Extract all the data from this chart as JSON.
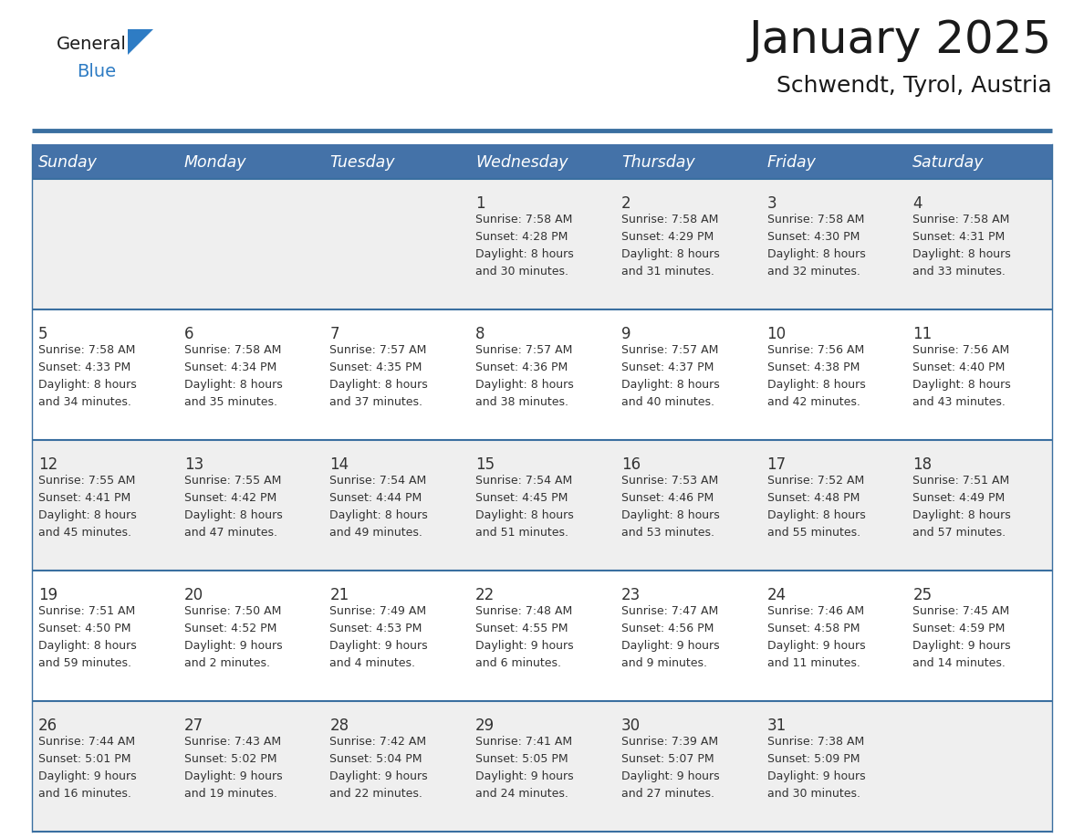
{
  "title": "January 2025",
  "subtitle": "Schwendt, Tyrol, Austria",
  "days_of_week": [
    "Sunday",
    "Monday",
    "Tuesday",
    "Wednesday",
    "Thursday",
    "Friday",
    "Saturday"
  ],
  "header_bg": "#4472a8",
  "header_text": "#ffffff",
  "row_bg_odd": "#efefef",
  "row_bg_even": "#ffffff",
  "divider_color": "#3a6fa0",
  "text_color": "#333333",
  "calendar": [
    [
      null,
      null,
      null,
      {
        "day": 1,
        "sunrise": "7:58 AM",
        "sunset": "4:28 PM",
        "daylight": "8 hours and 30 minutes"
      },
      {
        "day": 2,
        "sunrise": "7:58 AM",
        "sunset": "4:29 PM",
        "daylight": "8 hours and 31 minutes"
      },
      {
        "day": 3,
        "sunrise": "7:58 AM",
        "sunset": "4:30 PM",
        "daylight": "8 hours and 32 minutes"
      },
      {
        "day": 4,
        "sunrise": "7:58 AM",
        "sunset": "4:31 PM",
        "daylight": "8 hours and 33 minutes"
      }
    ],
    [
      {
        "day": 5,
        "sunrise": "7:58 AM",
        "sunset": "4:33 PM",
        "daylight": "8 hours and 34 minutes"
      },
      {
        "day": 6,
        "sunrise": "7:58 AM",
        "sunset": "4:34 PM",
        "daylight": "8 hours and 35 minutes"
      },
      {
        "day": 7,
        "sunrise": "7:57 AM",
        "sunset": "4:35 PM",
        "daylight": "8 hours and 37 minutes"
      },
      {
        "day": 8,
        "sunrise": "7:57 AM",
        "sunset": "4:36 PM",
        "daylight": "8 hours and 38 minutes"
      },
      {
        "day": 9,
        "sunrise": "7:57 AM",
        "sunset": "4:37 PM",
        "daylight": "8 hours and 40 minutes"
      },
      {
        "day": 10,
        "sunrise": "7:56 AM",
        "sunset": "4:38 PM",
        "daylight": "8 hours and 42 minutes"
      },
      {
        "day": 11,
        "sunrise": "7:56 AM",
        "sunset": "4:40 PM",
        "daylight": "8 hours and 43 minutes"
      }
    ],
    [
      {
        "day": 12,
        "sunrise": "7:55 AM",
        "sunset": "4:41 PM",
        "daylight": "8 hours and 45 minutes"
      },
      {
        "day": 13,
        "sunrise": "7:55 AM",
        "sunset": "4:42 PM",
        "daylight": "8 hours and 47 minutes"
      },
      {
        "day": 14,
        "sunrise": "7:54 AM",
        "sunset": "4:44 PM",
        "daylight": "8 hours and 49 minutes"
      },
      {
        "day": 15,
        "sunrise": "7:54 AM",
        "sunset": "4:45 PM",
        "daylight": "8 hours and 51 minutes"
      },
      {
        "day": 16,
        "sunrise": "7:53 AM",
        "sunset": "4:46 PM",
        "daylight": "8 hours and 53 minutes"
      },
      {
        "day": 17,
        "sunrise": "7:52 AM",
        "sunset": "4:48 PM",
        "daylight": "8 hours and 55 minutes"
      },
      {
        "day": 18,
        "sunrise": "7:51 AM",
        "sunset": "4:49 PM",
        "daylight": "8 hours and 57 minutes"
      }
    ],
    [
      {
        "day": 19,
        "sunrise": "7:51 AM",
        "sunset": "4:50 PM",
        "daylight": "8 hours and 59 minutes"
      },
      {
        "day": 20,
        "sunrise": "7:50 AM",
        "sunset": "4:52 PM",
        "daylight": "9 hours and 2 minutes"
      },
      {
        "day": 21,
        "sunrise": "7:49 AM",
        "sunset": "4:53 PM",
        "daylight": "9 hours and 4 minutes"
      },
      {
        "day": 22,
        "sunrise": "7:48 AM",
        "sunset": "4:55 PM",
        "daylight": "9 hours and 6 minutes"
      },
      {
        "day": 23,
        "sunrise": "7:47 AM",
        "sunset": "4:56 PM",
        "daylight": "9 hours and 9 minutes"
      },
      {
        "day": 24,
        "sunrise": "7:46 AM",
        "sunset": "4:58 PM",
        "daylight": "9 hours and 11 minutes"
      },
      {
        "day": 25,
        "sunrise": "7:45 AM",
        "sunset": "4:59 PM",
        "daylight": "9 hours and 14 minutes"
      }
    ],
    [
      {
        "day": 26,
        "sunrise": "7:44 AM",
        "sunset": "5:01 PM",
        "daylight": "9 hours and 16 minutes"
      },
      {
        "day": 27,
        "sunrise": "7:43 AM",
        "sunset": "5:02 PM",
        "daylight": "9 hours and 19 minutes"
      },
      {
        "day": 28,
        "sunrise": "7:42 AM",
        "sunset": "5:04 PM",
        "daylight": "9 hours and 22 minutes"
      },
      {
        "day": 29,
        "sunrise": "7:41 AM",
        "sunset": "5:05 PM",
        "daylight": "9 hours and 24 minutes"
      },
      {
        "day": 30,
        "sunrise": "7:39 AM",
        "sunset": "5:07 PM",
        "daylight": "9 hours and 27 minutes"
      },
      {
        "day": 31,
        "sunrise": "7:38 AM",
        "sunset": "5:09 PM",
        "daylight": "9 hours and 30 minutes"
      },
      null
    ]
  ]
}
